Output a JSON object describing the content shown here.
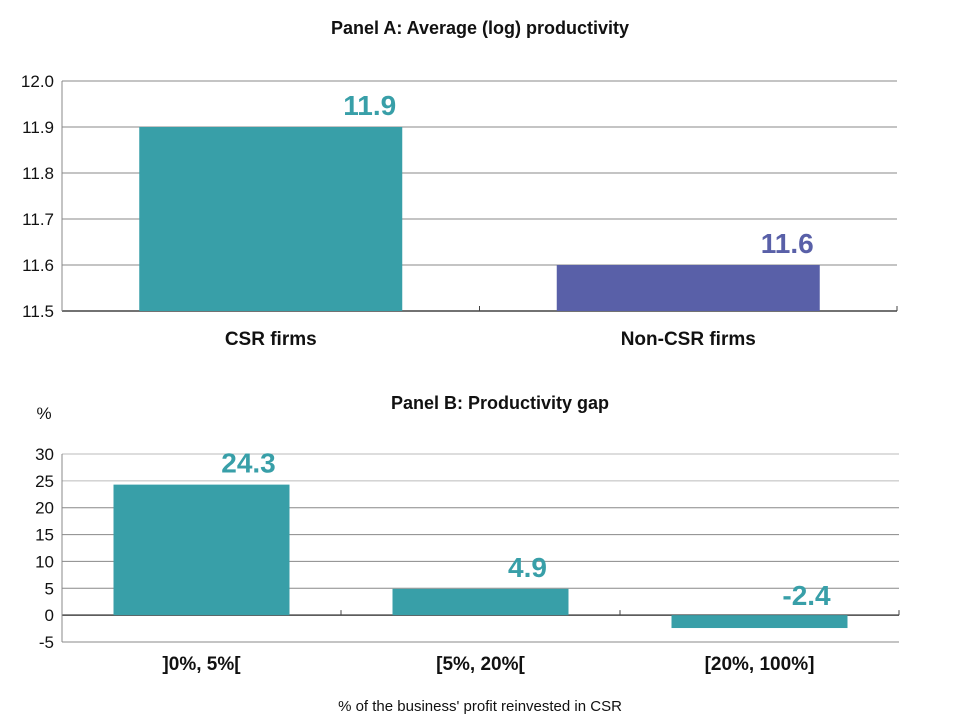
{
  "chart_data": [
    {
      "type": "bar",
      "title": "Panel A: Average (log) productivity",
      "xlabel": "",
      "ylabel": "",
      "categories": [
        "CSR firms",
        "Non-CSR firms"
      ],
      "values": [
        11.9,
        11.6
      ],
      "data_labels": [
        "11.9",
        "11.6"
      ],
      "bar_colors": [
        "#389fa8",
        "#5960a8"
      ],
      "ylim": [
        11.5,
        12.0
      ],
      "yticks": [
        "11.5",
        "11.6",
        "11.7",
        "11.8",
        "11.9",
        "12.0"
      ],
      "ytick_values": [
        11.5,
        11.6,
        11.7,
        11.8,
        11.9,
        12.0
      ],
      "grid": true,
      "legend": "none"
    },
    {
      "type": "bar",
      "title": "Panel B: Productivity gap",
      "ylabel": "%",
      "xlabel": "% of the business' profit reinvested in CSR",
      "categories": [
        "]0%, 5%[",
        "[5%, 20%[",
        "[20%, 100%]"
      ],
      "values": [
        24.3,
        4.9,
        -2.4
      ],
      "data_labels": [
        "24.3",
        "4.9",
        "-2.4"
      ],
      "bar_colors": [
        "#389fa8",
        "#389fa8",
        "#389fa8"
      ],
      "ylim": [
        -5,
        30
      ],
      "yticks": [
        "-5",
        "0",
        "5",
        "10",
        "15",
        "20",
        "25",
        "30"
      ],
      "ytick_values": [
        -5,
        0,
        5,
        10,
        15,
        20,
        25,
        30
      ],
      "grid": true,
      "legend": "none"
    }
  ],
  "colors": {
    "teal": "#389fa8",
    "purple": "#5960a8",
    "grid": "#888888",
    "axis": "#444444"
  }
}
